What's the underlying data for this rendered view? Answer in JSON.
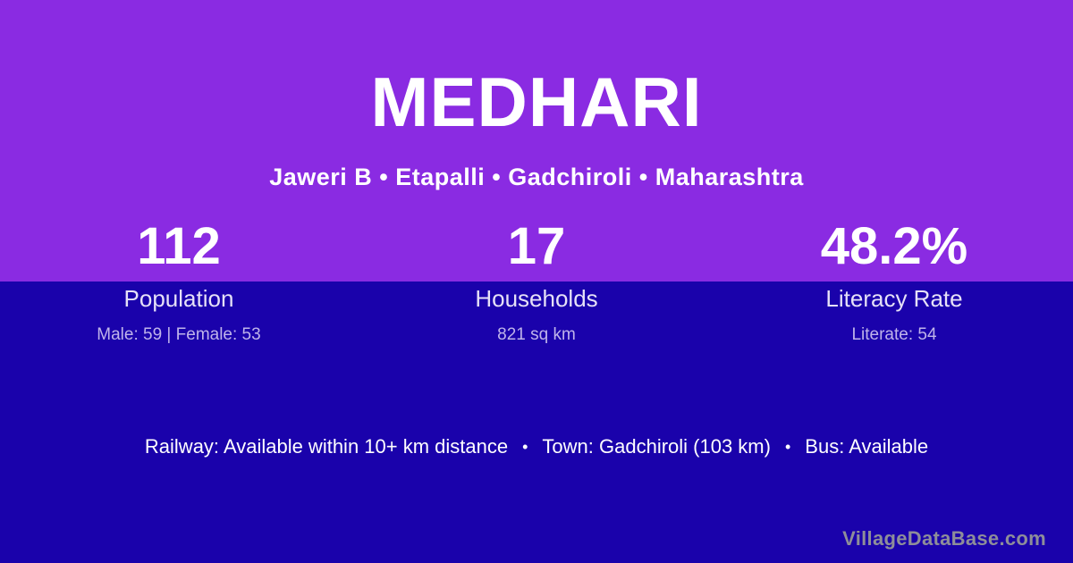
{
  "colors": {
    "top_background": "#8A2BE2",
    "bottom_background": "#1A02AB",
    "primary_text": "#FFFFFF",
    "stat_label_text": "#E6E1F7",
    "stat_detail_text": "#BFB4EA",
    "brand_text": "#8E8E99"
  },
  "header": {
    "village_name": "MEDHARI",
    "breadcrumb": "Jaweri B • Etapalli • Gadchiroli • Maharashtra"
  },
  "stats": [
    {
      "value": "112",
      "label": "Population",
      "detail": "Male: 59 | Female: 53"
    },
    {
      "value": "17",
      "label": "Households",
      "detail": "821 sq km"
    },
    {
      "value": "48.2%",
      "label": "Literacy Rate",
      "detail": "Literate: 54"
    }
  ],
  "info": {
    "railway": "Railway: Available within 10+ km distance",
    "separator": "•",
    "town": "Town: Gadchiroli (103 km)",
    "bus": "Bus: Available"
  },
  "footer": {
    "brand": "VillageDataBase.com"
  }
}
